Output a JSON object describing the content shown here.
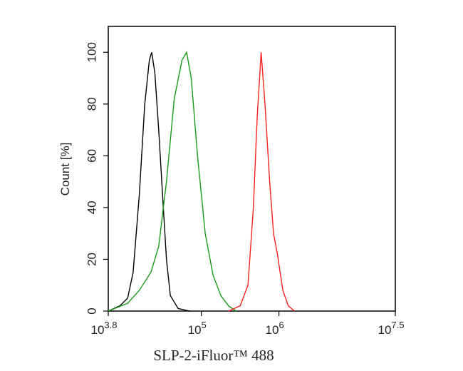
{
  "chart_data": {
    "type": "line",
    "x_label": "SLP-2-iFluor™ 488",
    "y_label": "Count [%]",
    "xscale": "log",
    "xlim": [
      6309.57,
      31622776.6
    ],
    "ylim": [
      0,
      110
    ],
    "xticks": [
      {
        "value": 6309.57,
        "label": "10",
        "sup": "3.8"
      },
      {
        "value": 100000,
        "label": "10",
        "sup": "5"
      },
      {
        "value": 1000000,
        "label": "10",
        "sup": "6"
      },
      {
        "value": 31622776.6,
        "label": "10",
        "sup": "7.5"
      }
    ],
    "yticks": [
      0,
      20,
      40,
      60,
      80,
      100
    ],
    "grid": false,
    "series": [
      {
        "color": "#000000",
        "x": [
          6310,
          8913,
          11220,
          13183,
          15849,
          18621,
          21380,
          22909,
          25119,
          28184,
          31623,
          35481,
          39811,
          50119,
          70795
        ],
        "values": [
          0,
          2,
          5,
          15,
          45,
          80,
          97,
          100,
          92,
          70,
          45,
          20,
          6,
          1,
          0
        ]
      },
      {
        "color": "#1a9a1a",
        "x": [
          6310,
          11220,
          15849,
          22387,
          28184,
          35481,
          44668,
          56234,
          64565,
          74131,
          89125,
          112202,
          141254,
          177828,
          223872,
          281838
        ],
        "values": [
          0,
          3,
          8,
          15,
          25,
          50,
          82,
          97,
          100,
          90,
          60,
          30,
          14,
          6,
          2,
          0
        ]
      },
      {
        "color": "#ff2020",
        "x": [
          223872,
          316228,
          398107,
          467735,
          524807,
          588844,
          660693,
          758578,
          851138,
          954993,
          1122018,
          1318257,
          1584893
        ],
        "values": [
          0,
          2,
          10,
          40,
          75,
          100,
          80,
          50,
          30,
          22,
          8,
          2,
          0
        ]
      }
    ]
  }
}
